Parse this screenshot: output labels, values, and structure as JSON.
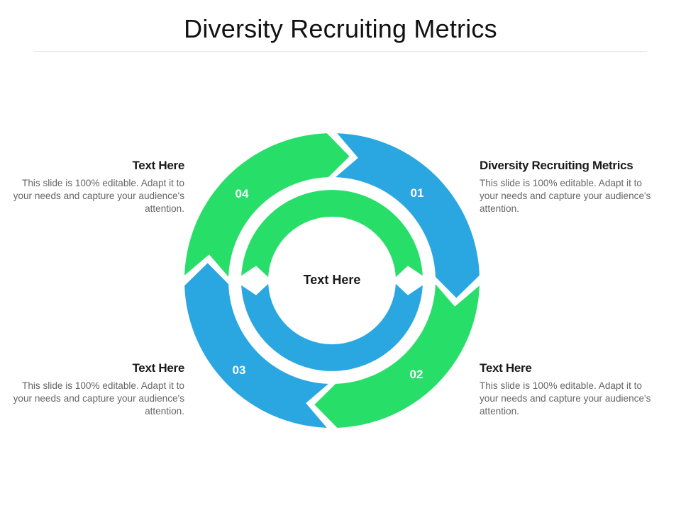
{
  "title": "Diversity Recruiting Metrics",
  "colors": {
    "blue": "#2aa7e1",
    "green": "#27df68"
  },
  "center_label": "Text Here",
  "segments": [
    {
      "number": "01",
      "color": "blue"
    },
    {
      "number": "02",
      "color": "green"
    },
    {
      "number": "03",
      "color": "blue"
    },
    {
      "number": "04",
      "color": "green"
    }
  ],
  "blocks": {
    "top_left": {
      "heading": "Text Here",
      "body": "This slide is 100% editable. Adapt it to your needs and capture your audience's attention."
    },
    "top_right": {
      "heading": "Diversity Recruiting Metrics",
      "body": "This slide is 100% editable. Adapt it to your needs and capture your audience's attention."
    },
    "bottom_left": {
      "heading": "Text Here",
      "body": "This slide is 100% editable. Adapt it to your needs and capture your audience's attention."
    },
    "bottom_right": {
      "heading": "Text Here",
      "body": "This slide is 100% editable. Adapt it to your needs and capture your audience's attention."
    }
  }
}
